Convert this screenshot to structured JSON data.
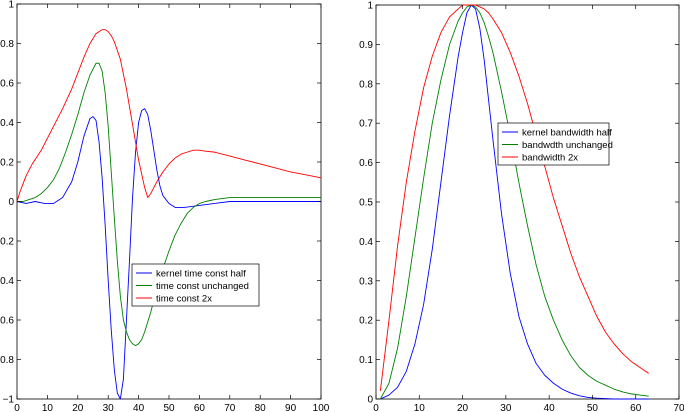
{
  "chart_data": [
    {
      "type": "line",
      "xlim": [
        0,
        100
      ],
      "ylim": [
        -1,
        1
      ],
      "xticks": [
        0,
        10,
        20,
        30,
        40,
        50,
        60,
        70,
        80,
        90,
        100
      ],
      "yticks": [
        -1,
        -0.8,
        -0.6,
        -0.4,
        -0.2,
        0,
        0.2,
        0.4,
        0.6,
        0.8,
        1
      ],
      "xtick_labels": [
        "0",
        "10",
        "20",
        "30",
        "40",
        "50",
        "60",
        "70",
        "80",
        "90",
        "100"
      ],
      "ytick_labels": [
        "−1",
        "−0.8",
        "−0.6",
        "−0.4",
        "−0.2",
        "0",
        "0.2",
        "0.4",
        "0.6",
        "0.8",
        "1"
      ],
      "grid": false,
      "legend_position": "lower-right",
      "series": [
        {
          "name": "kernel time const half",
          "color": "#0000ff",
          "x": [
            0,
            3,
            6,
            9,
            12,
            15,
            18,
            20,
            22,
            24,
            25,
            26,
            27,
            28,
            29,
            30,
            31,
            32,
            33,
            34,
            35,
            36,
            37,
            38,
            39,
            40,
            41,
            42,
            43,
            44,
            45,
            46,
            47,
            48,
            50,
            52,
            55,
            60,
            65,
            70,
            80,
            90,
            100
          ],
          "y": [
            0,
            -0.01,
            0,
            -0.01,
            -0.01,
            0.02,
            0.1,
            0.2,
            0.33,
            0.42,
            0.43,
            0.41,
            0.3,
            0.12,
            -0.12,
            -0.4,
            -0.65,
            -0.85,
            -0.97,
            -1.0,
            -0.9,
            -0.6,
            -0.3,
            0.02,
            0.25,
            0.4,
            0.46,
            0.47,
            0.44,
            0.36,
            0.26,
            0.16,
            0.08,
            0.03,
            -0.01,
            -0.03,
            -0.03,
            -0.02,
            -0.01,
            0,
            0,
            0,
            0
          ]
        },
        {
          "name": "time const unchanged",
          "color": "#008000",
          "x": [
            0,
            2,
            4,
            6,
            8,
            10,
            12,
            14,
            16,
            18,
            20,
            22,
            24,
            26,
            27,
            28,
            29,
            30,
            31,
            32,
            33,
            34,
            35,
            36,
            37,
            38,
            39,
            40,
            41,
            42,
            43,
            44,
            45,
            46,
            48,
            50,
            52,
            54,
            56,
            58,
            60,
            62,
            65,
            70,
            75,
            80,
            90,
            100
          ],
          "y": [
            0,
            0,
            0.01,
            0.02,
            0.04,
            0.07,
            0.11,
            0.17,
            0.25,
            0.34,
            0.44,
            0.55,
            0.64,
            0.7,
            0.7,
            0.66,
            0.55,
            0.38,
            0.15,
            -0.08,
            -0.3,
            -0.48,
            -0.6,
            -0.66,
            -0.7,
            -0.72,
            -0.73,
            -0.72,
            -0.7,
            -0.66,
            -0.61,
            -0.56,
            -0.5,
            -0.44,
            -0.34,
            -0.25,
            -0.17,
            -0.11,
            -0.06,
            -0.03,
            -0.01,
            0,
            0.01,
            0.02,
            0.02,
            0.02,
            0.02,
            0.02
          ]
        },
        {
          "name": "time const 2x",
          "color": "#ff0000",
          "x": [
            0,
            1,
            2,
            3,
            5,
            8,
            10,
            12,
            15,
            18,
            20,
            22,
            24,
            26,
            28,
            29,
            30,
            31,
            32,
            34,
            36,
            38,
            40,
            42,
            43,
            44,
            45,
            46,
            48,
            50,
            52,
            54,
            56,
            58,
            60,
            62,
            65,
            70,
            75,
            80,
            85,
            90,
            95,
            100
          ],
          "y": [
            0,
            0.05,
            0.09,
            0.13,
            0.19,
            0.26,
            0.32,
            0.38,
            0.47,
            0.57,
            0.65,
            0.73,
            0.8,
            0.85,
            0.87,
            0.87,
            0.86,
            0.84,
            0.81,
            0.72,
            0.57,
            0.39,
            0.21,
            0.07,
            0.02,
            0.04,
            0.07,
            0.1,
            0.15,
            0.19,
            0.22,
            0.24,
            0.25,
            0.26,
            0.26,
            0.255,
            0.25,
            0.23,
            0.21,
            0.19,
            0.17,
            0.15,
            0.135,
            0.12
          ]
        }
      ]
    },
    {
      "type": "line",
      "xlim": [
        0,
        70
      ],
      "ylim": [
        0,
        1
      ],
      "xticks": [
        0,
        10,
        20,
        30,
        40,
        50,
        60,
        70
      ],
      "yticks": [
        0,
        0.1,
        0.2,
        0.3,
        0.4,
        0.5,
        0.6,
        0.7,
        0.8,
        0.9,
        1
      ],
      "xtick_labels": [
        "0",
        "10",
        "20",
        "30",
        "40",
        "50",
        "60",
        "70"
      ],
      "ytick_labels": [
        "0",
        "0.1",
        "0.2",
        "0.3",
        "0.4",
        "0.5",
        "0.6",
        "0.7",
        "0.8",
        "0.9",
        "1"
      ],
      "grid": false,
      "legend_position": "upper-right",
      "series": [
        {
          "name": "kernel bandwidth half",
          "color": "#0000ff",
          "x": [
            1,
            3,
            5,
            7,
            9,
            11,
            13,
            15,
            17,
            19,
            20,
            21,
            22,
            23,
            24,
            25,
            26,
            27,
            29,
            31,
            33,
            35,
            37,
            39,
            41,
            43,
            45,
            47,
            49,
            51,
            53,
            55,
            57,
            59,
            61,
            63
          ],
          "y": [
            0,
            0.01,
            0.03,
            0.07,
            0.14,
            0.24,
            0.38,
            0.55,
            0.72,
            0.87,
            0.93,
            0.98,
            1.0,
            0.99,
            0.94,
            0.86,
            0.76,
            0.66,
            0.47,
            0.32,
            0.21,
            0.14,
            0.09,
            0.06,
            0.04,
            0.025,
            0.015,
            0.008,
            0.004,
            0.002,
            0.001,
            0,
            0,
            0,
            0,
            0
          ]
        },
        {
          "name": "bandwdth unchanged",
          "color": "#008000",
          "x": [
            1,
            3,
            5,
            7,
            9,
            11,
            13,
            15,
            17,
            19,
            20,
            21,
            22,
            23,
            24,
            25,
            26,
            27,
            29,
            31,
            33,
            35,
            37,
            39,
            41,
            43,
            45,
            47,
            49,
            51,
            53,
            55,
            57,
            59,
            61,
            63
          ],
          "y": [
            0,
            0.04,
            0.13,
            0.26,
            0.41,
            0.56,
            0.7,
            0.81,
            0.9,
            0.96,
            0.98,
            0.995,
            1.0,
            0.995,
            0.98,
            0.955,
            0.92,
            0.88,
            0.78,
            0.67,
            0.55,
            0.44,
            0.34,
            0.26,
            0.2,
            0.15,
            0.11,
            0.08,
            0.06,
            0.045,
            0.035,
            0.025,
            0.018,
            0.013,
            0.01,
            0.007
          ]
        },
        {
          "name": "bandwidth 2x",
          "color": "#ff0000",
          "x": [
            1,
            3,
            5,
            7,
            9,
            11,
            13,
            15,
            17,
            19,
            20,
            21,
            22,
            23,
            24,
            25,
            26,
            27,
            29,
            31,
            33,
            35,
            37,
            39,
            41,
            43,
            45,
            47,
            49,
            51,
            53,
            55,
            57,
            59,
            61,
            63
          ],
          "y": [
            0.02,
            0.2,
            0.39,
            0.55,
            0.68,
            0.79,
            0.87,
            0.93,
            0.97,
            0.99,
            1.0,
            1.0,
            1.0,
            1.0,
            0.995,
            0.99,
            0.98,
            0.965,
            0.93,
            0.88,
            0.82,
            0.75,
            0.67,
            0.59,
            0.51,
            0.44,
            0.37,
            0.31,
            0.26,
            0.21,
            0.17,
            0.14,
            0.115,
            0.095,
            0.08,
            0.065
          ]
        }
      ]
    }
  ]
}
